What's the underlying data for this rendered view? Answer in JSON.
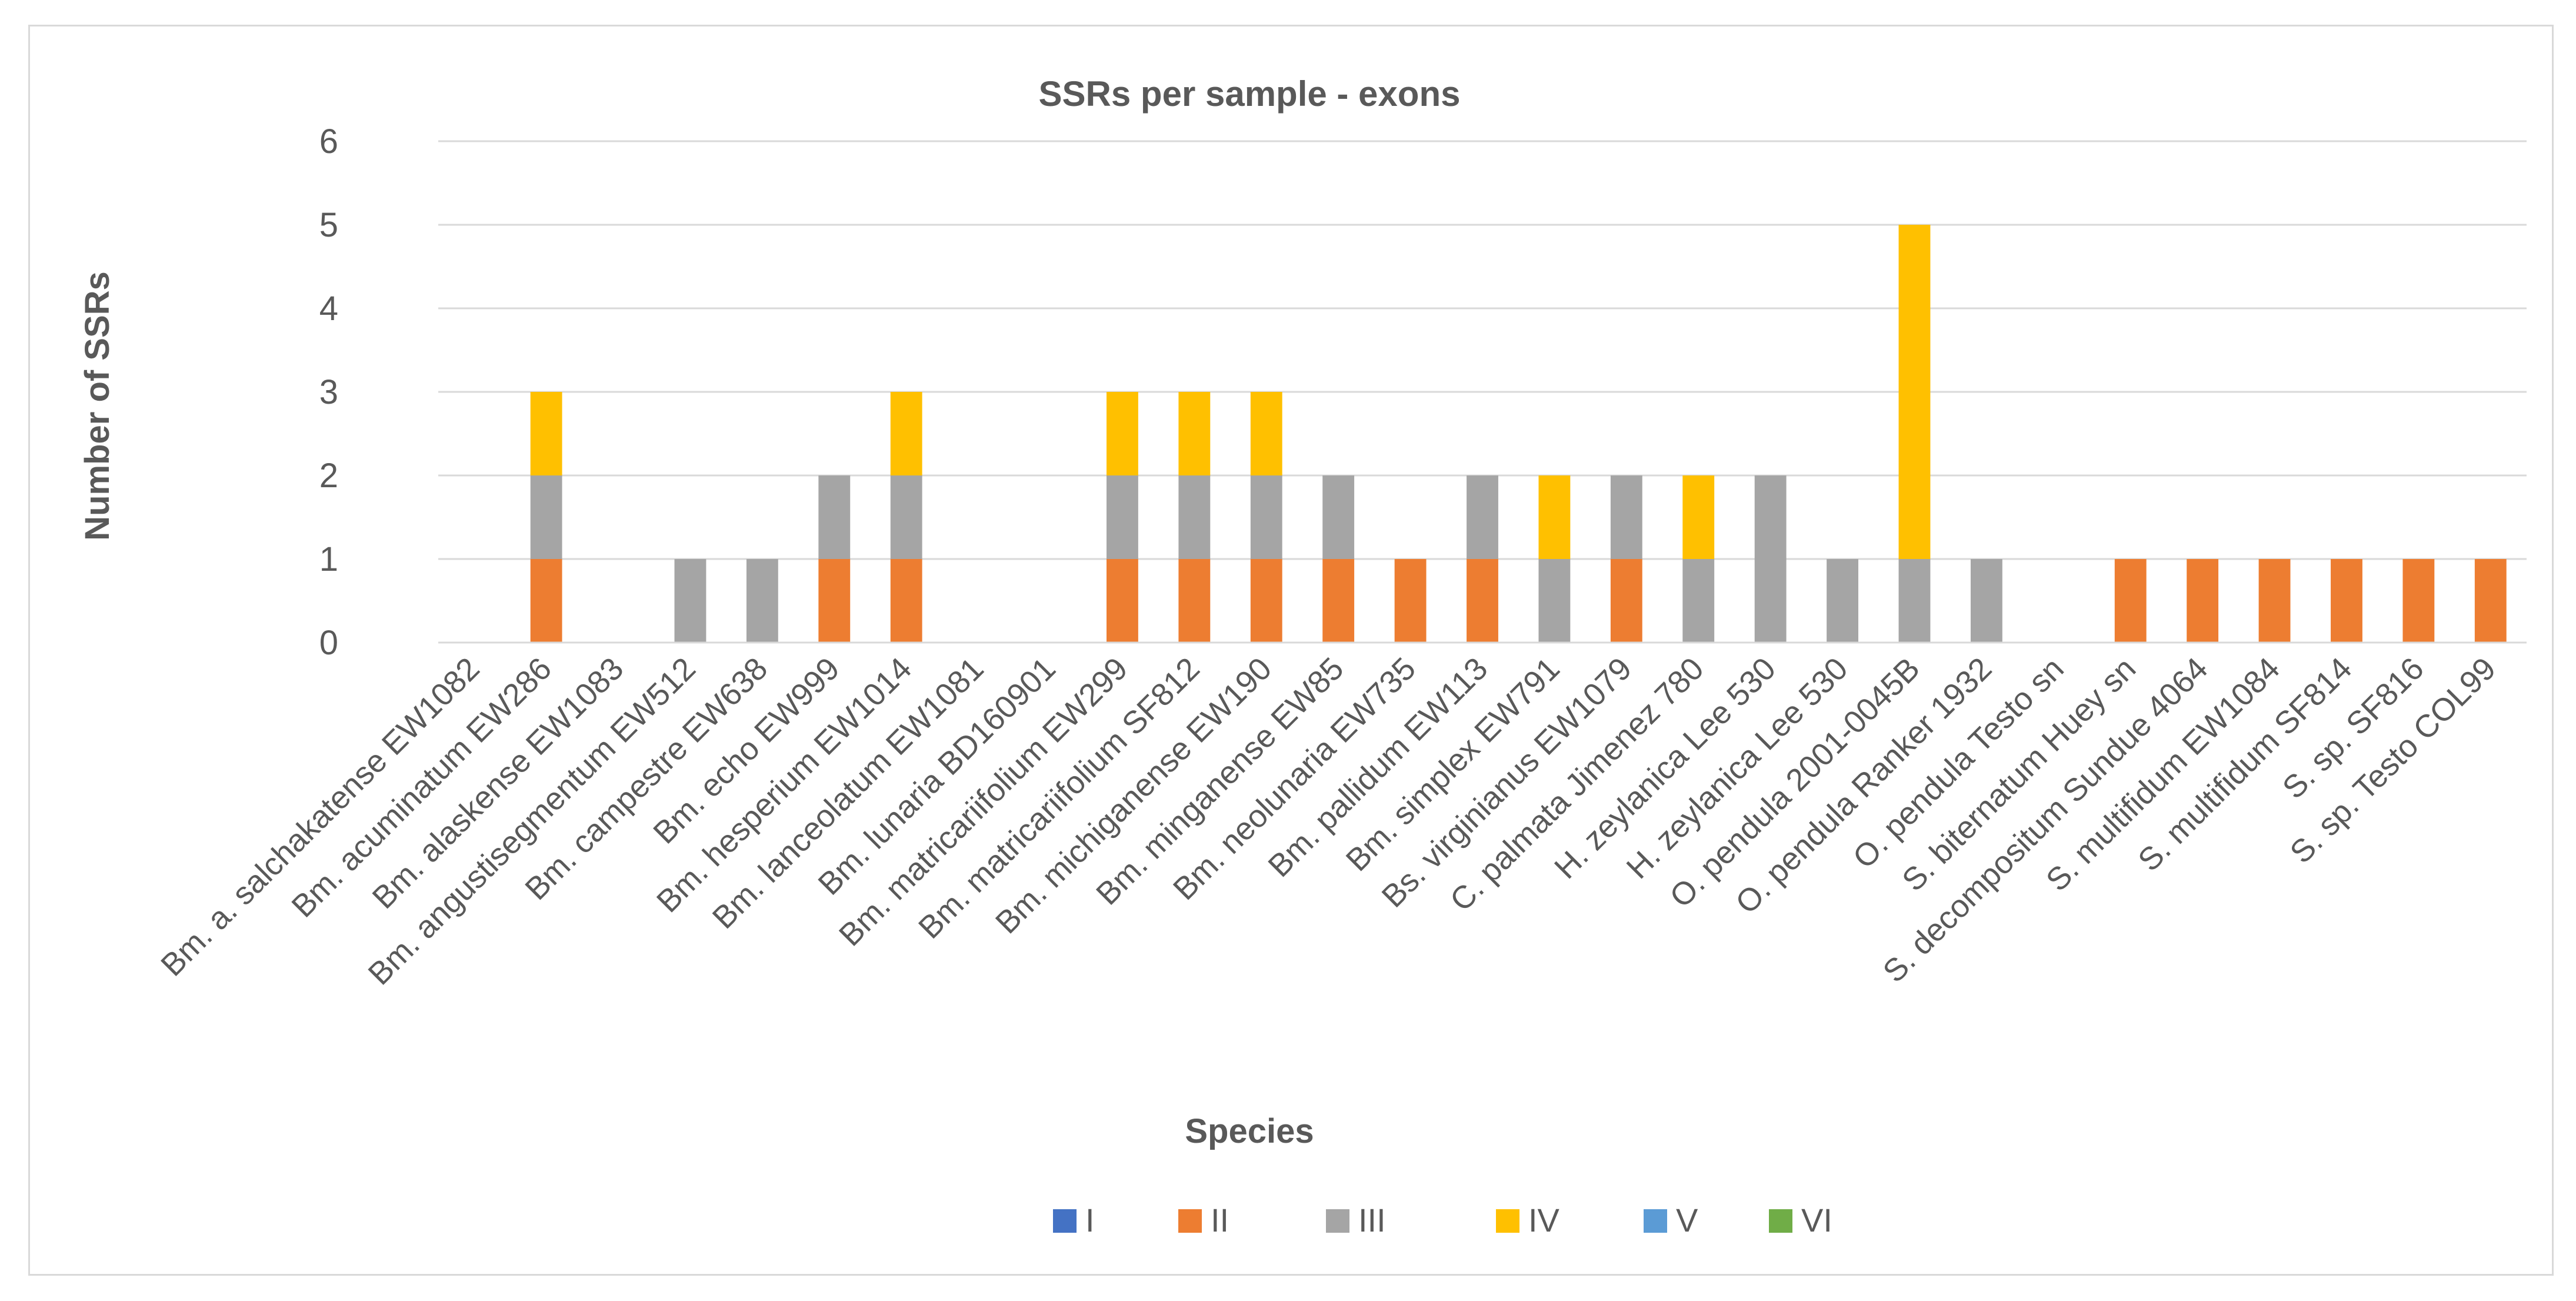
{
  "chart_data": {
    "type": "bar",
    "stacked": true,
    "title": "SSRs per sample - exons",
    "xlabel": "Species",
    "ylabel": "Number of SSRs",
    "ylim": [
      0,
      6
    ],
    "yticks": [
      0,
      1,
      2,
      3,
      4,
      5,
      6
    ],
    "grid": true,
    "legend_position": "bottom",
    "categories": [
      "Bm. a. salchakatense EW1082",
      "Bm. acuminatum EW286",
      "Bm. alaskense EW1083",
      "Bm. angustisegmentum EW512",
      "Bm. campestre EW638",
      "Bm. echo EW999",
      "Bm. hesperium EW1014",
      "Bm. lanceolatum EW1081",
      "Bm. lunaria BD160901",
      "Bm. matricariifolium EW299",
      "Bm. matricariifolium SF812",
      "Bm. michiganense EW190",
      "Bm. minganense EW85",
      "Bm. neolunaria EW735",
      "Bm. pallidum EW113",
      "Bm. simplex EW791",
      "Bs. virginianus EW1079",
      "C. palmata Jimenez 780",
      "H. zeylanica Lee 530",
      "H. zeylanica Lee 530",
      "O. pendula 2001-0045B",
      "O. pendula Ranker 1932",
      "O. pendula Testo sn",
      "S. biternatum Huey sn",
      "S. decompositum Sundue 4064",
      "S. multifidum EW1084",
      "S. multifidum SF814",
      "S. sp. SF816",
      "S. sp. Testo COL99"
    ],
    "series": [
      {
        "name": "I",
        "color": "#4472c4",
        "values": [
          0,
          0,
          0,
          0,
          0,
          0,
          0,
          0,
          0,
          0,
          0,
          0,
          0,
          0,
          0,
          0,
          0,
          0,
          0,
          0,
          0,
          0,
          0,
          0,
          0,
          0,
          0,
          0,
          0
        ]
      },
      {
        "name": "II",
        "color": "#ed7d31",
        "values": [
          0,
          1,
          0,
          0,
          0,
          1,
          1,
          0,
          0,
          1,
          1,
          1,
          1,
          1,
          1,
          0,
          1,
          0,
          0,
          0,
          0,
          0,
          0,
          1,
          1,
          1,
          1,
          1,
          1
        ]
      },
      {
        "name": "III",
        "color": "#a5a5a5",
        "values": [
          0,
          1,
          0,
          1,
          1,
          1,
          1,
          0,
          0,
          1,
          1,
          1,
          1,
          0,
          1,
          1,
          1,
          1,
          2,
          1,
          1,
          1,
          0,
          0,
          0,
          0,
          0,
          0,
          0
        ]
      },
      {
        "name": "IV",
        "color": "#ffc000",
        "values": [
          0,
          1,
          0,
          0,
          0,
          0,
          1,
          0,
          0,
          1,
          1,
          1,
          0,
          0,
          0,
          1,
          0,
          1,
          0,
          0,
          4,
          0,
          0,
          0,
          0,
          0,
          0,
          0,
          0
        ]
      },
      {
        "name": "V",
        "color": "#5b9bd5",
        "values": [
          0,
          0,
          0,
          0,
          0,
          0,
          0,
          0,
          0,
          0,
          0,
          0,
          0,
          0,
          0,
          0,
          0,
          0,
          0,
          0,
          0,
          0,
          0,
          0,
          0,
          0,
          0,
          0,
          0
        ]
      },
      {
        "name": "VI",
        "color": "#70ad47",
        "values": [
          0,
          0,
          0,
          0,
          0,
          0,
          0,
          0,
          0,
          0,
          0,
          0,
          0,
          0,
          0,
          0,
          0,
          0,
          0,
          0,
          0,
          0,
          0,
          0,
          0,
          0,
          0,
          0,
          0
        ]
      }
    ]
  }
}
